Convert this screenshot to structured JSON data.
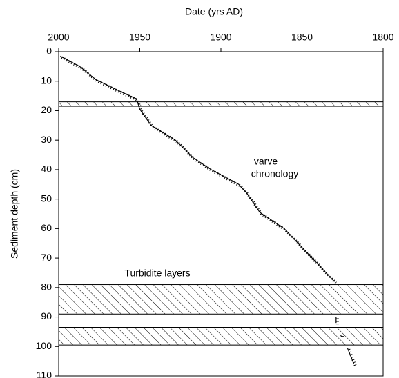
{
  "chart_data": {
    "type": "line",
    "xlabel": "Date (yrs AD)",
    "ylabel": "Sediment depth (cm)",
    "xlim": [
      2000,
      1800
    ],
    "xticks": [
      2000,
      1950,
      1900,
      1850,
      1800
    ],
    "ylim": [
      0,
      110
    ],
    "yticks": [
      0,
      10,
      20,
      30,
      40,
      50,
      60,
      70,
      80,
      90,
      100,
      110
    ],
    "series": [
      {
        "name": "varve chronology",
        "color": "#000000",
        "x": [
          1999,
          1987,
          1977,
          1960,
          1952,
          1950,
          1943,
          1928,
          1917,
          1906,
          1889,
          1884,
          1876,
          1861,
          1830,
          null,
          1828,
          1828,
          null,
          1829,
          1829,
          null,
          1826,
          1826,
          null,
          1822,
          1818
        ],
        "values": [
          1.5,
          5,
          9.5,
          14,
          16,
          19.5,
          25,
          30,
          36,
          40,
          45,
          48,
          54.5,
          60,
          78,
          null,
          84.5,
          84.5,
          null,
          90,
          92,
          null,
          96,
          96.5,
          null,
          100.5,
          106
        ]
      }
    ],
    "turbidite_layers": [
      [
        17,
        18.5
      ],
      [
        79,
        89
      ],
      [
        93.5,
        99.5
      ]
    ],
    "annotations": [
      "varve",
      "chronology",
      "Turbidite layers"
    ]
  }
}
